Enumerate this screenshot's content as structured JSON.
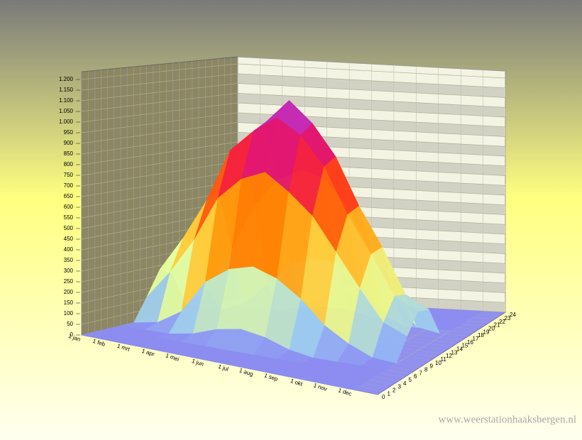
{
  "chart_data": {
    "type": "surface3d",
    "categories": [
      "1 jan",
      "1 feb",
      "1 mrt",
      "1 apr",
      "1 mei",
      "1 jun",
      "1 jul",
      "1 aug",
      "1 sep",
      "1 okt",
      "1 nov",
      "1 dec"
    ],
    "hours": [
      0,
      2,
      4,
      6,
      8,
      10,
      12,
      14,
      16,
      18,
      20,
      22,
      24
    ],
    "values": [
      [
        0,
        0,
        0,
        0,
        0,
        110,
        230,
        200,
        30,
        0,
        0,
        0,
        0
      ],
      [
        0,
        0,
        0,
        0,
        20,
        250,
        400,
        380,
        120,
        0,
        0,
        0,
        0
      ],
      [
        0,
        0,
        0,
        0,
        90,
        420,
        600,
        620,
        330,
        40,
        0,
        0,
        0
      ],
      [
        0,
        0,
        0,
        20,
        250,
        640,
        860,
        880,
        560,
        150,
        0,
        0,
        0
      ],
      [
        0,
        0,
        0,
        60,
        330,
        750,
        970,
        1000,
        700,
        260,
        20,
        0,
        0
      ],
      [
        0,
        0,
        0,
        80,
        360,
        800,
        1050,
        1120,
        760,
        300,
        30,
        0,
        0
      ],
      [
        0,
        0,
        0,
        60,
        320,
        720,
        980,
        1020,
        730,
        290,
        30,
        0,
        0
      ],
      [
        0,
        0,
        0,
        20,
        240,
        620,
        840,
        870,
        600,
        200,
        0,
        0,
        0
      ],
      [
        0,
        0,
        0,
        0,
        130,
        460,
        620,
        640,
        400,
        60,
        0,
        0,
        0
      ],
      [
        0,
        0,
        0,
        0,
        60,
        300,
        440,
        450,
        190,
        0,
        0,
        0,
        0
      ],
      [
        0,
        0,
        0,
        0,
        10,
        150,
        250,
        230,
        40,
        0,
        0,
        0,
        0
      ],
      [
        0,
        0,
        0,
        0,
        0,
        100,
        190,
        170,
        20,
        0,
        0,
        0,
        0
      ]
    ],
    "ylim": [
      0,
      1200
    ],
    "yticks": [
      0,
      50,
      100,
      150,
      200,
      250,
      300,
      350,
      400,
      450,
      500,
      550,
      600,
      650,
      700,
      750,
      800,
      850,
      900,
      950,
      {
        "value": 1000,
        "label": "1.000"
      },
      {
        "value": 1050,
        "label": "1.050"
      },
      {
        "value": 1100,
        "label": "1.100"
      },
      {
        "value": 1150,
        "label": "1.150"
      },
      {
        "value": 1200,
        "label": "1.200"
      }
    ],
    "zlim": [
      0,
      24
    ],
    "zticks": [
      0,
      1,
      2,
      3,
      4,
      5,
      6,
      7,
      8,
      9,
      10,
      11,
      12,
      13,
      14,
      15,
      16,
      17,
      18,
      19,
      20,
      21,
      22,
      23,
      24
    ],
    "colorscale": [
      "#8c8cf0",
      "#98c8f4",
      "#e6ff9c",
      "#ffd040",
      "#ff8a00",
      "#ff2a20",
      "#d8108c",
      "#a060ff"
    ],
    "grid": true,
    "watermark": "www.weerstationhaaksbergen.nl"
  }
}
